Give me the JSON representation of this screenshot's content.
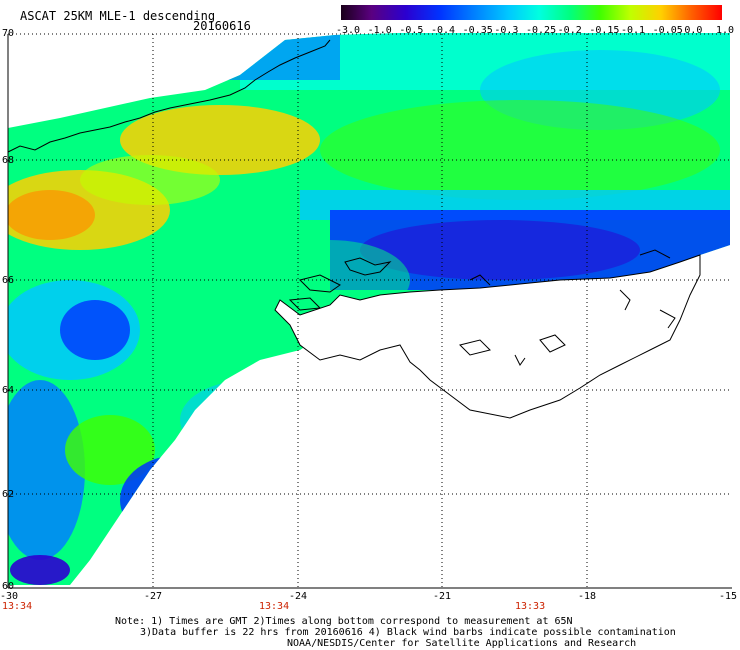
{
  "title": "ASCAT 25KM MLE-1 descending",
  "date": "20160616",
  "colorbar": {
    "labels": [
      "-3.0",
      "-1.0",
      "-0.5",
      "-0.4",
      "-0.35",
      "-0.3",
      "-0.25",
      "-0.2",
      "-0.15",
      "-0.1",
      "-0.05",
      "0.0",
      "1.0"
    ],
    "colors": [
      "#1a001a",
      "#5a0080",
      "#2b00d0",
      "#0033ff",
      "#0080ff",
      "#00c8ff",
      "#00ffe0",
      "#00ff80",
      "#40ff00",
      "#c0ff00",
      "#ffd000",
      "#ff6000",
      "#ff0000"
    ]
  },
  "lat_labels": [
    "70",
    "68",
    "66",
    "64",
    "62",
    "60"
  ],
  "lon_labels": [
    "-30",
    "-27",
    "-24",
    "-21",
    "-18",
    "-15"
  ],
  "times": [
    "13:34",
    "13:34",
    "13:33"
  ],
  "notes": [
    "Note: 1) Times are GMT 2)Times along bottom correspond to measurement at 65N",
    "3)Data buffer is 22 hrs from 20160616 4) Black wind barbs indicate possible contamination",
    "NOAA/NESDIS/Center for Satellite Applications and Research"
  ]
}
